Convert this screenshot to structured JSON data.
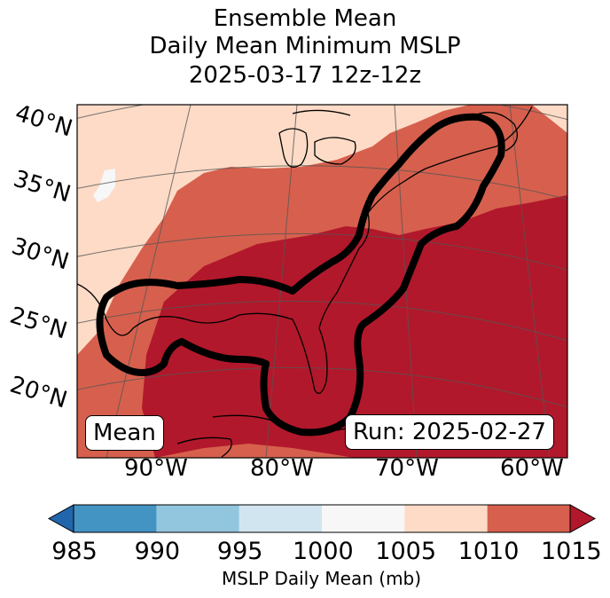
{
  "title": {
    "line1": "Ensemble Mean",
    "line2": "Daily Mean Minimum MSLP",
    "line3": "2025-03-17 12z-12z"
  },
  "map": {
    "lat_labels": [
      "40°N",
      "35°N",
      "30°N",
      "25°N",
      "20°N"
    ],
    "lon_labels": [
      "90°W",
      "80°W",
      "70°W",
      "60°W"
    ],
    "mean_box": "Mean",
    "run_box": "Run: 2025-02-27",
    "contour_color": "#000000"
  },
  "colorbar": {
    "label": "MSLP Daily Mean (mb)",
    "ticks": [
      "985",
      "990",
      "995",
      "1000",
      "1005",
      "1010",
      "1015"
    ],
    "colors": [
      "#2166ac",
      "#4393c3",
      "#92c5de",
      "#d1e5f0",
      "#f7f7f7",
      "#fddbc7",
      "#d6604d",
      "#b2182b"
    ]
  }
}
